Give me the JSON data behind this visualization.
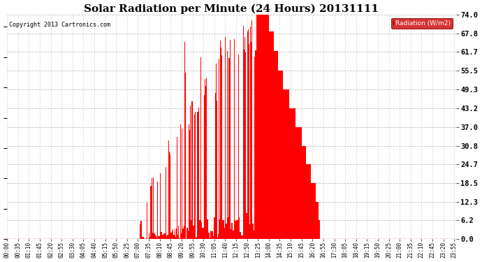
{
  "title": "Solar Radiation per Minute (24 Hours) 20131111",
  "copyright": "Copyright 2013 Cartronics.com",
  "legend_label": "Radiation (W/m2)",
  "yticks": [
    0.0,
    6.2,
    12.3,
    18.5,
    24.7,
    30.8,
    37.0,
    43.2,
    49.3,
    55.5,
    61.7,
    67.8,
    74.0
  ],
  "ylim": [
    0.0,
    74.0
  ],
  "bar_color": "#FF0000",
  "legend_bg": "#CC0000",
  "legend_fg": "#FFFFFF",
  "background_color": "#FFFFFF",
  "grid_color": "#BBBBBB",
  "zero_line_color": "#FF0000",
  "title_fontsize": 11,
  "xtick_labels": [
    "00:00",
    "00:35",
    "01:10",
    "01:45",
    "02:20",
    "02:55",
    "03:30",
    "04:05",
    "04:40",
    "05:15",
    "05:50",
    "06:25",
    "07:00",
    "07:35",
    "08:10",
    "08:45",
    "09:20",
    "09:55",
    "10:30",
    "11:05",
    "11:40",
    "12:15",
    "12:50",
    "13:25",
    "14:00",
    "14:35",
    "15:10",
    "15:45",
    "16:20",
    "16:55",
    "17:30",
    "18:05",
    "18:40",
    "19:15",
    "19:50",
    "20:25",
    "21:00",
    "21:35",
    "22:10",
    "22:45",
    "23:20",
    "23:55"
  ]
}
